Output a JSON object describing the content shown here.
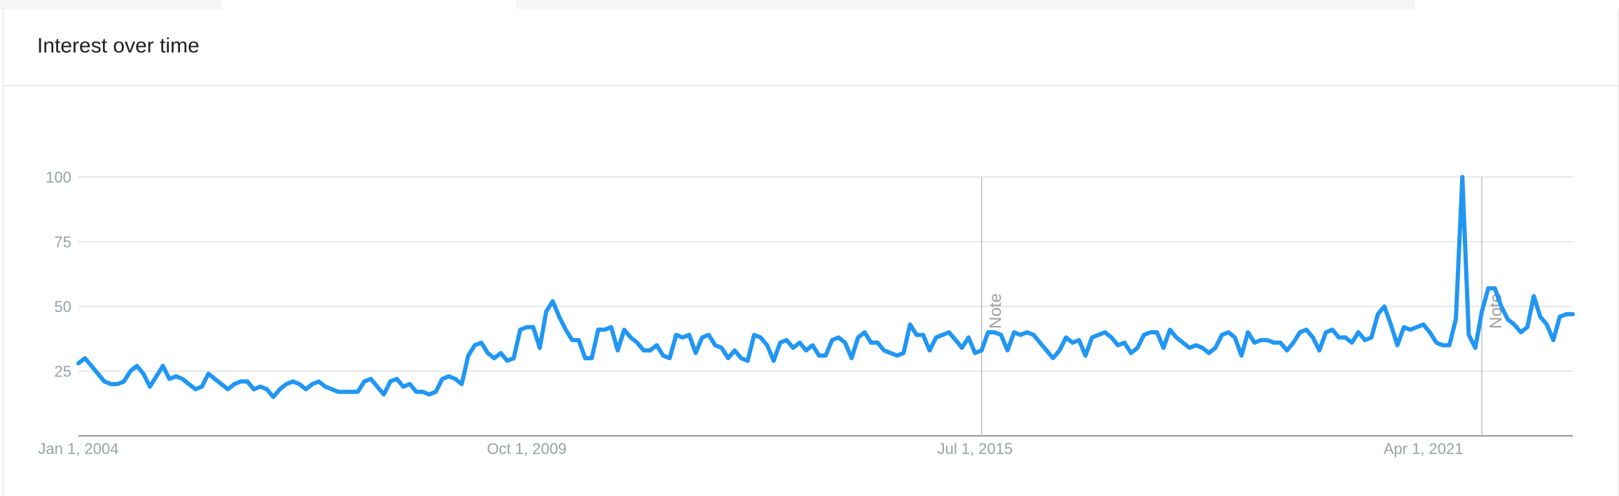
{
  "card": {
    "title": "Interest over time"
  },
  "chart_data": {
    "type": "line",
    "title": "Interest over time",
    "xlabel": "",
    "ylabel": "",
    "x_start": "2004-01-01",
    "x_interval": "month",
    "x_ticks": [
      "Jan 1, 2004",
      "Oct 1, 2009",
      "Jul 1, 2015",
      "Apr 1, 2021"
    ],
    "y_ticks": [
      "25",
      "50",
      "75",
      "100"
    ],
    "ylim": [
      0,
      100
    ],
    "grid": true,
    "line_color": "#2196f3",
    "notes": [
      {
        "label": "Note",
        "date": "Aug 1, 2015"
      },
      {
        "label": "Note",
        "date": "Jan 1, 2022"
      }
    ],
    "series": [
      {
        "values": [
          28,
          30,
          27,
          24,
          21,
          20,
          20,
          21,
          25,
          27,
          24,
          19,
          23,
          27,
          22,
          23,
          22,
          20,
          18,
          19,
          24,
          22,
          20,
          18,
          20,
          21,
          21,
          18,
          19,
          18,
          15,
          18,
          20,
          21,
          20,
          18,
          20,
          21,
          19,
          18,
          17,
          17,
          17,
          17,
          21,
          22,
          19,
          16,
          21,
          22,
          19,
          20,
          17,
          17,
          16,
          17,
          22,
          23,
          22,
          20,
          31,
          35,
          36,
          32,
          30,
          32,
          29,
          30,
          41,
          42,
          42,
          34,
          48,
          52,
          46,
          41,
          37,
          37,
          30,
          30,
          41,
          41,
          42,
          33,
          41,
          38,
          36,
          33,
          33,
          35,
          31,
          30,
          39,
          38,
          39,
          32,
          38,
          39,
          35,
          34,
          30,
          33,
          30,
          29,
          39,
          38,
          35,
          29,
          36,
          37,
          34,
          36,
          33,
          35,
          31,
          31,
          37,
          38,
          36,
          30,
          38,
          40,
          36,
          36,
          33,
          32,
          31,
          32,
          43,
          39,
          39,
          33,
          38,
          39,
          40,
          37,
          34,
          38,
          32,
          33,
          40,
          40,
          39,
          33,
          40,
          39,
          40,
          39,
          36,
          33,
          30,
          33,
          38,
          36,
          37,
          31,
          38,
          39,
          40,
          38,
          35,
          36,
          32,
          34,
          39,
          40,
          40,
          34,
          41,
          38,
          36,
          34,
          35,
          34,
          32,
          34,
          39,
          40,
          38,
          31,
          40,
          36,
          37,
          37,
          36,
          36,
          33,
          36,
          40,
          41,
          38,
          33,
          40,
          41,
          38,
          38,
          36,
          40,
          37,
          38,
          47,
          50,
          43,
          35,
          42,
          41,
          42,
          43,
          40,
          36,
          35,
          35,
          45,
          100,
          39,
          34,
          48,
          57,
          57,
          50,
          45,
          43,
          40,
          42,
          54,
          46,
          43,
          37,
          46,
          47,
          47
        ]
      }
    ]
  }
}
